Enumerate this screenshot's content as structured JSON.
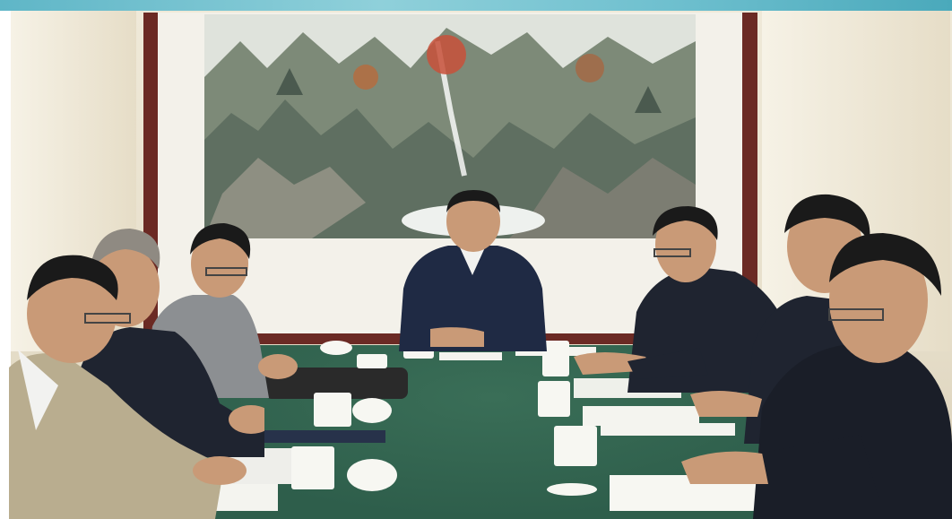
{
  "scene": {
    "description_tag": "meeting-photo",
    "colors": {
      "wall": "#e7dfcb",
      "frame": "#6b2a24",
      "table": "#2e5e4b",
      "dark_suit": "#1f2430",
      "grey_suit": "#8c8f92",
      "beige_suit": "#b9ad8f",
      "skin": "#c99a77",
      "hair": "#1a1a1a",
      "paper": "#f4f4ef",
      "cup": "#f7f7f2"
    }
  }
}
